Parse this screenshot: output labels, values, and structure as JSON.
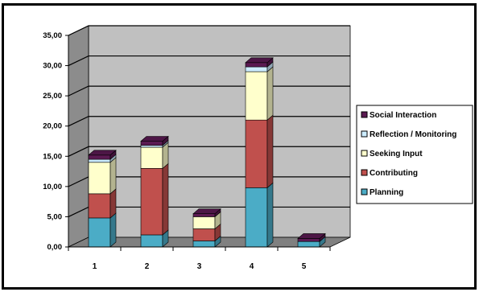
{
  "chart_data": {
    "type": "bar",
    "stacked": true,
    "three_d": true,
    "categories": [
      "1",
      "2",
      "3",
      "4",
      "5"
    ],
    "series": [
      {
        "name": "Planning",
        "values": [
          4.8,
          2.0,
          1.0,
          9.8,
          0.9
        ],
        "color": "#4bacc6"
      },
      {
        "name": "Contributing",
        "values": [
          4.0,
          11.0,
          2.0,
          11.2,
          0.0
        ],
        "color": "#c0504d"
      },
      {
        "name": "Seeking Input",
        "values": [
          5.2,
          3.5,
          2.0,
          8.0,
          0.0
        ],
        "color": "#ffffcc"
      },
      {
        "name": "Reflection / Monitoring",
        "values": [
          0.5,
          0.3,
          0.0,
          0.8,
          0.0
        ],
        "color": "#ccecff"
      },
      {
        "name": "Social Interaction",
        "values": [
          0.7,
          0.7,
          0.5,
          0.7,
          0.5
        ],
        "color": "#5b1a52"
      }
    ],
    "legend_order": [
      "Social Interaction",
      "Reflection / Monitoring",
      "Seeking Input",
      "Contributing",
      "Planning"
    ],
    "yticks": [
      "0,00",
      "5,00",
      "10,00",
      "15,00",
      "20,00",
      "25,00",
      "30,00",
      "35,00"
    ],
    "ylim": [
      0,
      35
    ],
    "grid": true,
    "legend_position": "right",
    "wall_color": "#c0c0c0",
    "floor_color": "#808080"
  }
}
